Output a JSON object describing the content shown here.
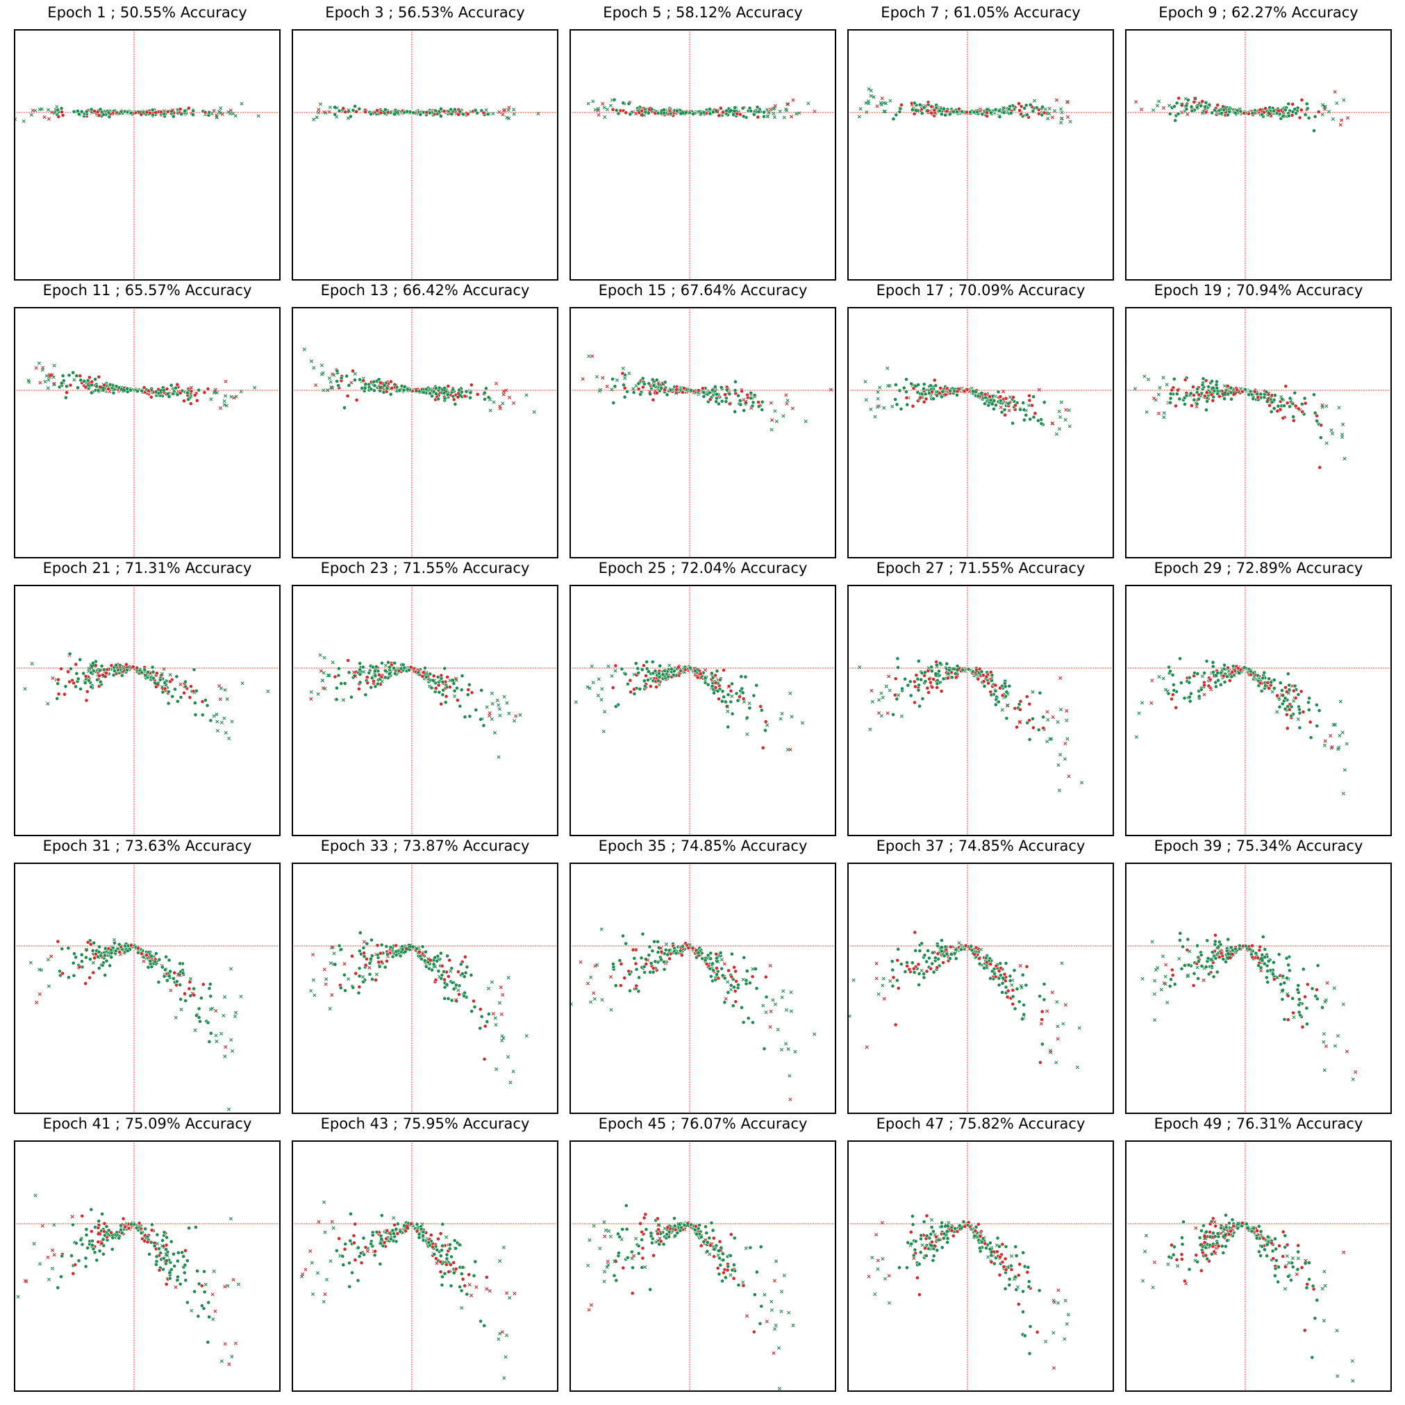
{
  "colors": {
    "class_a": "#1b8a4c",
    "class_b": "#d62728",
    "reference_line": "#ff0000",
    "frame": "#000000"
  },
  "chart_data": [
    {
      "type": "scatter",
      "title": "Epoch 1 ; 50.55% Accuracy",
      "epoch": 1,
      "accuracy": 50.55,
      "slope_left": 0.0,
      "slope_right": 0.0,
      "spread": 0.02
    },
    {
      "type": "scatter",
      "title": "Epoch 3 ; 56.53% Accuracy",
      "epoch": 3,
      "accuracy": 56.53,
      "slope_left": 0.01,
      "slope_right": 0.0,
      "spread": 0.02
    },
    {
      "type": "scatter",
      "title": "Epoch 5 ; 58.12% Accuracy",
      "epoch": 5,
      "accuracy": 58.12,
      "slope_left": 0.04,
      "slope_right": -0.02,
      "spread": 0.03
    },
    {
      "type": "scatter",
      "title": "Epoch 7 ; 61.05% Accuracy",
      "epoch": 7,
      "accuracy": 61.05,
      "slope_left": 0.08,
      "slope_right": -0.03,
      "spread": 0.04
    },
    {
      "type": "scatter",
      "title": "Epoch 9 ; 62.27% Accuracy",
      "epoch": 9,
      "accuracy": 62.27,
      "slope_left": 0.1,
      "slope_right": -0.02,
      "spread": 0.05
    },
    {
      "type": "scatter",
      "title": "Epoch 11 ; 65.57% Accuracy",
      "epoch": 11,
      "accuracy": 65.57,
      "slope_left": 0.13,
      "slope_right": 0.05,
      "spread": 0.05
    },
    {
      "type": "scatter",
      "title": "Epoch 13 ; 66.42% Accuracy",
      "epoch": 13,
      "accuracy": 66.42,
      "slope_left": 0.13,
      "slope_right": 0.08,
      "spread": 0.06
    },
    {
      "type": "scatter",
      "title": "Epoch 15 ; 67.64% Accuracy",
      "epoch": 15,
      "accuracy": 67.64,
      "slope_left": 0.1,
      "slope_right": 0.15,
      "spread": 0.07
    },
    {
      "type": "scatter",
      "title": "Epoch 17 ; 70.09% Accuracy",
      "epoch": 17,
      "accuracy": 70.09,
      "slope_left": -0.05,
      "slope_right": 0.33,
      "spread": 0.08
    },
    {
      "type": "scatter",
      "title": "Epoch 19 ; 70.94% Accuracy",
      "epoch": 19,
      "accuracy": 70.94,
      "slope_left": -0.06,
      "slope_right": 0.38,
      "spread": 0.09
    },
    {
      "type": "scatter",
      "title": "Epoch 21 ; 71.31% Accuracy",
      "epoch": 21,
      "accuracy": 71.31,
      "slope_left": -0.12,
      "slope_right": 0.48,
      "spread": 0.1
    },
    {
      "type": "scatter",
      "title": "Epoch 23 ; 71.55% Accuracy",
      "epoch": 23,
      "accuracy": 71.55,
      "slope_left": -0.16,
      "slope_right": 0.55,
      "spread": 0.11
    },
    {
      "type": "scatter",
      "title": "Epoch 25 ; 72.04% Accuracy",
      "epoch": 25,
      "accuracy": 72.04,
      "slope_left": -0.2,
      "slope_right": 0.6,
      "spread": 0.11
    },
    {
      "type": "scatter",
      "title": "Epoch 27 ; 71.55% Accuracy",
      "epoch": 27,
      "accuracy": 71.55,
      "slope_left": -0.28,
      "slope_right": 0.72,
      "spread": 0.12
    },
    {
      "type": "scatter",
      "title": "Epoch 29 ; 72.89% Accuracy",
      "epoch": 29,
      "accuracy": 72.89,
      "slope_left": -0.3,
      "slope_right": 0.75,
      "spread": 0.12
    },
    {
      "type": "scatter",
      "title": "Epoch 31 ; 73.63% Accuracy",
      "epoch": 31,
      "accuracy": 73.63,
      "slope_left": -0.33,
      "slope_right": 0.82,
      "spread": 0.13
    },
    {
      "type": "scatter",
      "title": "Epoch 33 ; 73.87% Accuracy",
      "epoch": 33,
      "accuracy": 73.87,
      "slope_left": -0.36,
      "slope_right": 0.85,
      "spread": 0.13
    },
    {
      "type": "scatter",
      "title": "Epoch 35 ; 74.85% Accuracy",
      "epoch": 35,
      "accuracy": 74.85,
      "slope_left": -0.38,
      "slope_right": 0.88,
      "spread": 0.14
    },
    {
      "type": "scatter",
      "title": "Epoch 37 ; 74.85% Accuracy",
      "epoch": 37,
      "accuracy": 74.85,
      "slope_left": -0.38,
      "slope_right": 0.9,
      "spread": 0.14
    },
    {
      "type": "scatter",
      "title": "Epoch 39 ; 75.34% Accuracy",
      "epoch": 39,
      "accuracy": 75.34,
      "slope_left": -0.4,
      "slope_right": 0.95,
      "spread": 0.15
    },
    {
      "type": "scatter",
      "title": "Epoch 41 ; 75.09% Accuracy",
      "epoch": 41,
      "accuracy": 75.09,
      "slope_left": -0.42,
      "slope_right": 1.0,
      "spread": 0.15
    },
    {
      "type": "scatter",
      "title": "Epoch 43 ; 75.95% Accuracy",
      "epoch": 43,
      "accuracy": 75.95,
      "slope_left": -0.43,
      "slope_right": 1.0,
      "spread": 0.15
    },
    {
      "type": "scatter",
      "title": "Epoch 45 ; 76.07% Accuracy",
      "epoch": 45,
      "accuracy": 76.07,
      "slope_left": -0.44,
      "slope_right": 1.02,
      "spread": 0.16
    },
    {
      "type": "scatter",
      "title": "Epoch 47 ; 75.82% Accuracy",
      "epoch": 47,
      "accuracy": 75.82,
      "slope_left": -0.45,
      "slope_right": 1.04,
      "spread": 0.16
    },
    {
      "type": "scatter",
      "title": "Epoch 49 ; 76.31% Accuracy",
      "epoch": 49,
      "accuracy": 76.31,
      "slope_left": -0.46,
      "slope_right": 1.05,
      "spread": 0.16
    }
  ]
}
